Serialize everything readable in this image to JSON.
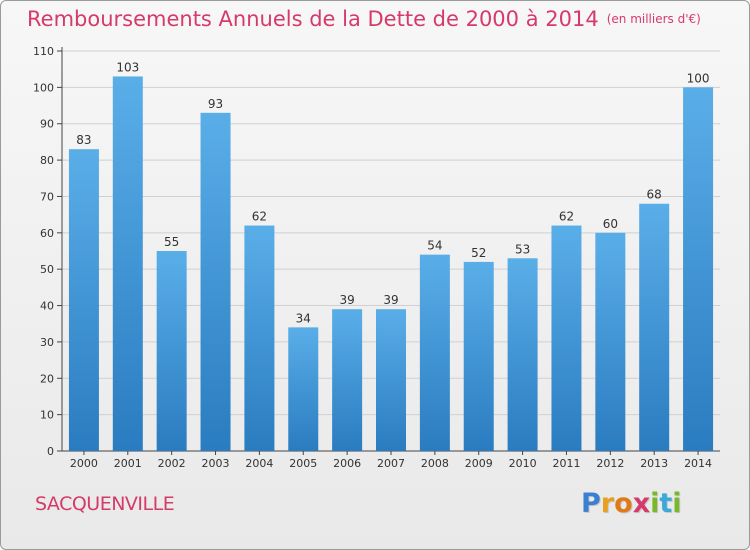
{
  "title": "Remboursements Annuels de la Dette de 2000 à 2014",
  "unit": "(en milliers d'€)",
  "region": "SACQUENVILLE",
  "logo_letters": [
    "P",
    "r",
    "o",
    "x",
    "i",
    "t",
    "i"
  ],
  "colors": {
    "title": "#d63a6a",
    "bar_top": "#5aaee8",
    "bar_bottom": "#2a7cc0",
    "grid": "#d0d0d0",
    "logo": [
      "#3a7fd0",
      "#e8a020",
      "#e07a18",
      "#d63a6a",
      "#78b82a",
      "#3aa8d8",
      "#78b82a"
    ]
  },
  "chart_data": {
    "type": "bar",
    "categories": [
      "2000",
      "2001",
      "2002",
      "2003",
      "2004",
      "2005",
      "2006",
      "2007",
      "2008",
      "2009",
      "2010",
      "2011",
      "2012",
      "2013",
      "2014"
    ],
    "values": [
      83,
      103,
      55,
      93,
      62,
      34,
      39,
      39,
      54,
      52,
      53,
      62,
      60,
      68,
      100
    ],
    "yticks": [
      0,
      10,
      20,
      30,
      40,
      50,
      60,
      70,
      80,
      90,
      100,
      110
    ],
    "ylim": [
      0,
      110
    ],
    "grid": true
  }
}
